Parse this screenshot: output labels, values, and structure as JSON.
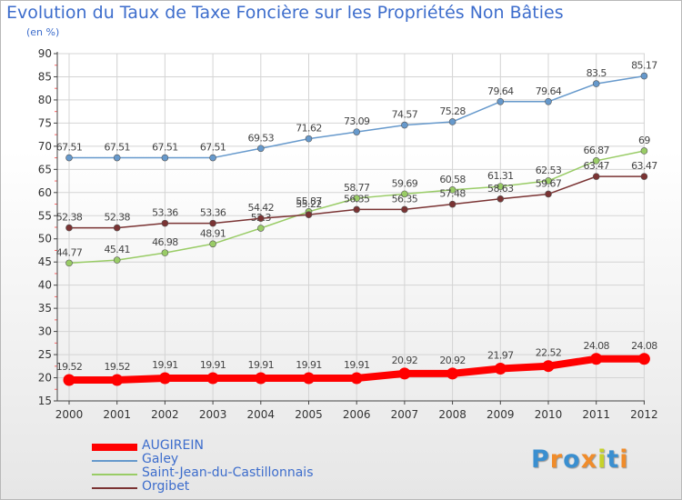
{
  "title": "Evolution du Taux de Taxe Foncière sur les Propriétés Non Bâties",
  "unit": "(en %)",
  "chart_data": {
    "type": "line",
    "title": "Evolution du Taux de Taxe Foncière sur les Propriétés Non Bâties",
    "ylabel": "(en %)",
    "xlabel": "",
    "x": [
      "2000",
      "2001",
      "2002",
      "2003",
      "2004",
      "2005",
      "2006",
      "2007",
      "2008",
      "2009",
      "2010",
      "2011",
      "2012"
    ],
    "ylim": [
      15,
      90
    ],
    "yticks": [
      15,
      20,
      25,
      30,
      35,
      40,
      45,
      50,
      55,
      60,
      65,
      70,
      75,
      80,
      85,
      90
    ],
    "grid": true,
    "legend_position": "bottom-left",
    "series": [
      {
        "name": "AUGIREIN",
        "color": "#ff0000",
        "values": [
          19.52,
          19.52,
          19.91,
          19.91,
          19.91,
          19.91,
          19.91,
          20.92,
          20.92,
          21.97,
          22.52,
          24.08,
          24.08
        ]
      },
      {
        "name": "Galey",
        "color": "#6699cc",
        "values": [
          67.51,
          67.51,
          67.51,
          67.51,
          69.53,
          71.62,
          73.09,
          74.57,
          75.28,
          79.64,
          79.64,
          83.5,
          85.17
        ]
      },
      {
        "name": "Saint-Jean-du-Castillonnais",
        "color": "#99cc66",
        "values": [
          44.77,
          45.41,
          46.98,
          48.91,
          52.3,
          55.87,
          58.77,
          59.69,
          60.58,
          61.31,
          62.53,
          66.87,
          69
        ]
      },
      {
        "name": "Orgibet",
        "color": "#7a3333",
        "values": [
          52.38,
          52.38,
          53.36,
          53.36,
          54.42,
          55.22,
          56.35,
          56.35,
          57.48,
          58.63,
          59.67,
          63.47,
          63.47
        ]
      }
    ]
  },
  "logo": {
    "letters": [
      "P",
      "r",
      "o",
      "x",
      "i",
      "t",
      "i"
    ],
    "colors": [
      "#3a8fd0",
      "#f08c2a",
      "#3a8fd0",
      "#f08c2a",
      "#c6d22b",
      "#3a8fd0",
      "#f08c2a"
    ]
  }
}
